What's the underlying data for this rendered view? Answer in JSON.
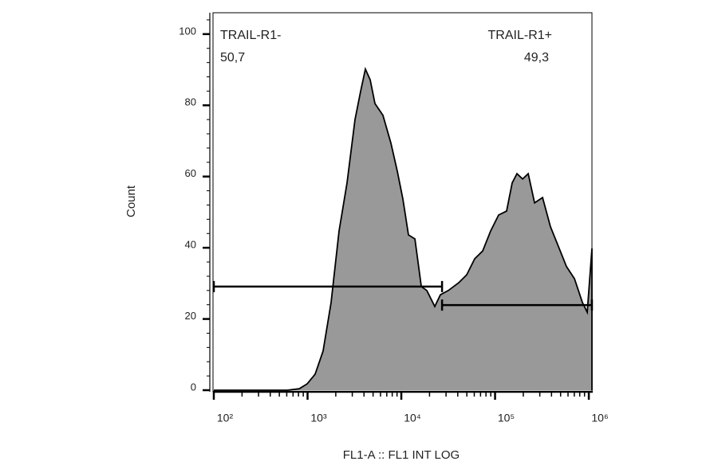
{
  "chart_data": {
    "type": "area",
    "xlabel": "FL1-A :: FL1 INT LOG",
    "ylabel": "Count",
    "xscale": "log",
    "color": "#999999",
    "line_color": "#000000",
    "x": [
      100,
      607,
      815,
      991,
      1205,
      1466,
      1782,
      2168,
      2636,
      3206,
      3681,
      4140,
      4656,
      5236,
      6365,
      7743,
      9057,
      10390,
      11930,
      13960,
      16330,
      18720,
      22760,
      26100,
      31770,
      41020,
      49870,
      60650,
      73770,
      89740,
      109100,
      132700,
      152300,
      171300,
      196600,
      225600,
      263800,
      320900,
      390200,
      474900,
      577500,
      702600,
      854600,
      961200,
      1080000,
      1080000
    ],
    "values": [
      0,
      0,
      0.4,
      1.8,
      4.5,
      11,
      24.6,
      44.7,
      58.2,
      76,
      83.9,
      90.2,
      87.2,
      80.5,
      77.2,
      69.4,
      61.5,
      53.7,
      43.6,
      42.5,
      29.1,
      28,
      23.5,
      26.8,
      28,
      30.2,
      32.4,
      36.9,
      39.1,
      44.7,
      49.2,
      50.3,
      58.2,
      60.8,
      59.3,
      60.8,
      52.6,
      54.1,
      45.9,
      40.3,
      34.7,
      31.3,
      24.6,
      21.9,
      39.8,
      0
    ],
    "xlim": [
      100,
      1080000
    ],
    "ylim": [
      0,
      106
    ],
    "xticks": [
      {
        "value": 100,
        "label": "10²"
      },
      {
        "value": 1000,
        "label": "10³"
      },
      {
        "value": 10000,
        "label": "10⁴"
      },
      {
        "value": 100000,
        "label": "10⁵"
      },
      {
        "value": 1000000,
        "label": "10⁶"
      }
    ],
    "xminorticks": [
      200,
      300,
      400,
      500,
      600,
      700,
      800,
      900,
      2000,
      3000,
      4000,
      5000,
      6000,
      7000,
      8000,
      9000,
      20000,
      30000,
      40000,
      50000,
      60000,
      70000,
      80000,
      90000,
      200000,
      300000,
      400000,
      500000,
      600000,
      700000,
      800000,
      900000
    ],
    "yticks": [
      0,
      20,
      40,
      60,
      80,
      100
    ],
    "yminorticks": [
      4,
      8,
      12,
      16,
      24,
      28,
      32,
      36,
      44,
      48,
      52,
      56,
      64,
      68,
      72,
      76,
      84,
      88,
      92,
      96,
      104
    ],
    "gates": [
      {
        "name": "TRAIL-R1-",
        "stat": "50,7",
        "range": [
          100,
          27200
        ],
        "level": 29.1
      },
      {
        "name": "TRAIL-R1+",
        "stat": "49,3",
        "range": [
          27200,
          1080000
        ],
        "level": 23.9
      }
    ]
  }
}
